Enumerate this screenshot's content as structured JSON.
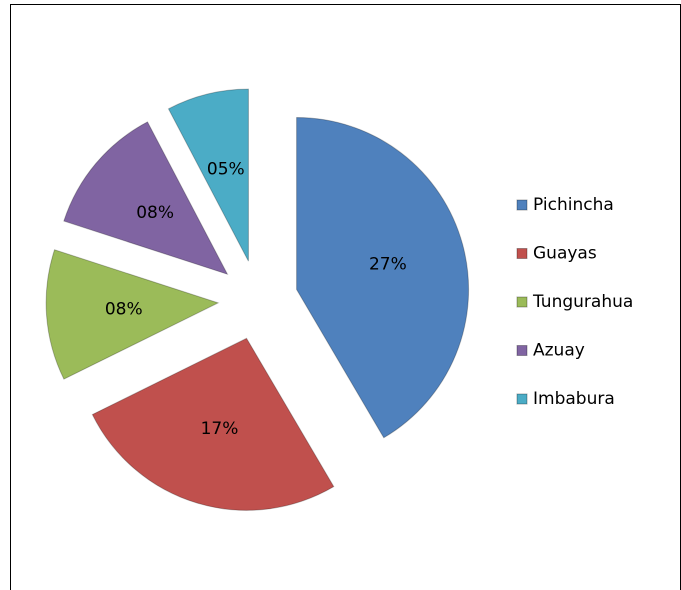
{
  "chart_data": {
    "type": "pie",
    "categories": [
      "Pichincha",
      "Guayas",
      "Tungurahua",
      "Azuay",
      "Imbabura"
    ],
    "values": [
      27,
      17,
      8,
      8,
      5
    ],
    "value_labels": [
      "27%",
      "17%",
      "08%",
      "08%",
      "05%"
    ],
    "colors": [
      "#4f81bd",
      "#c0504d",
      "#9bbb59",
      "#8064a2",
      "#4bacc6"
    ],
    "legend": "right"
  }
}
